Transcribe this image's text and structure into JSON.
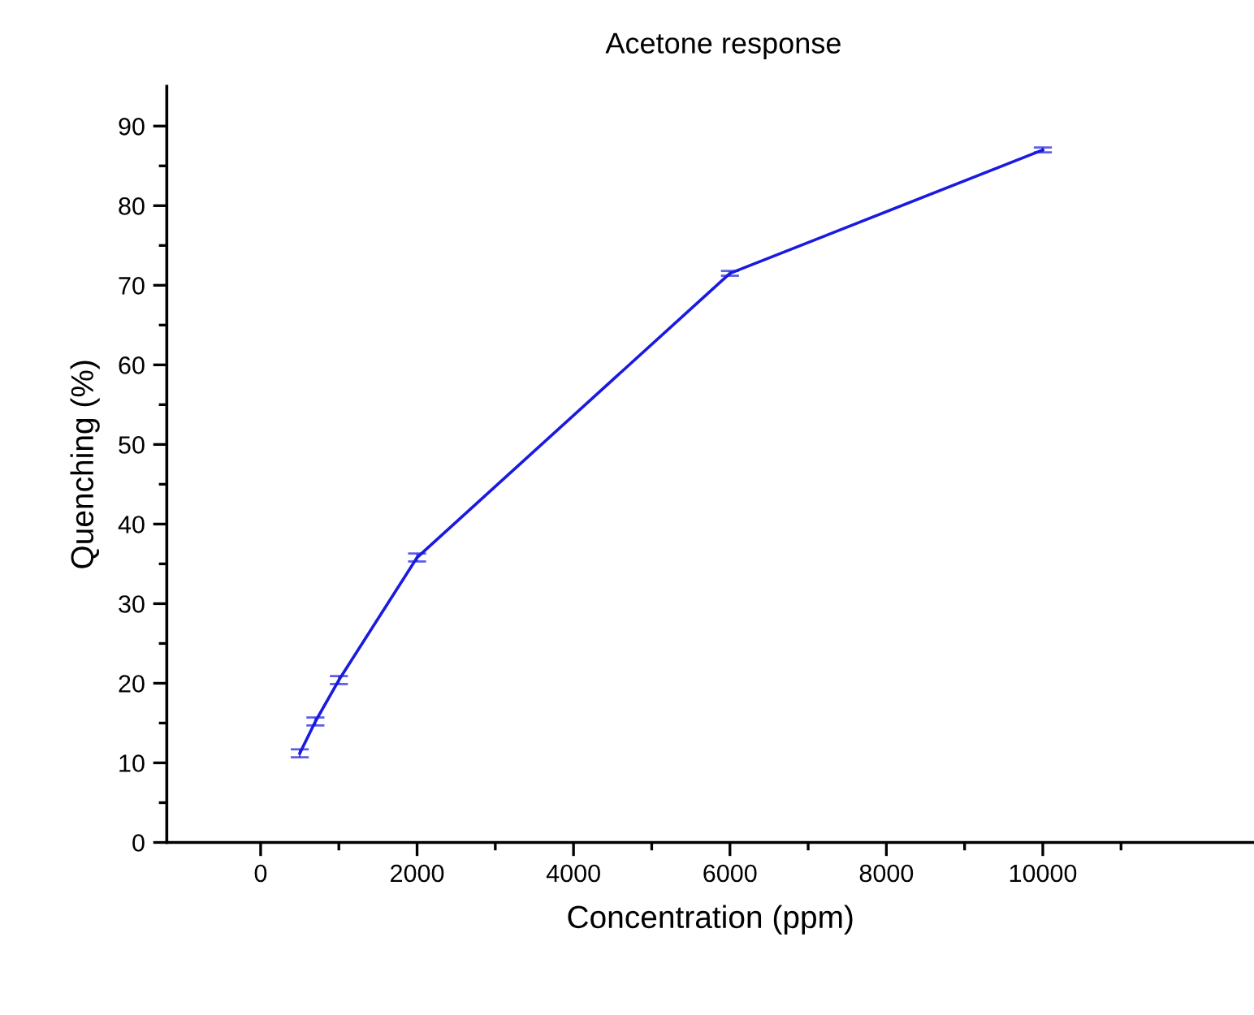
{
  "chart_data": {
    "type": "line",
    "title": "Acetone response",
    "xlabel": "Concentration (ppm)",
    "ylabel": "Quenching (%)",
    "x": [
      500,
      700,
      1000,
      2000,
      6000,
      10000
    ],
    "series": [
      {
        "color": "#1a1ae0",
        "values": [
          11.2,
          15.2,
          20.4,
          35.8,
          71.5,
          87.0
        ],
        "errors": [
          0.5,
          0.5,
          0.5,
          0.5,
          0.3,
          0.3
        ]
      }
    ],
    "xlim": [
      -1200,
      12700
    ],
    "ylim": [
      0,
      95
    ],
    "xticks": [
      0,
      {
        "value": 1000,
        "label": null
      },
      2000,
      {
        "value": 3000,
        "label": null
      },
      4000,
      {
        "value": 5000,
        "label": null
      },
      6000,
      {
        "value": 7000,
        "label": null
      },
      8000,
      {
        "value": 9000,
        "label": null
      },
      10000,
      {
        "value": 11000,
        "label": null
      }
    ],
    "yticks": [
      0,
      {
        "value": 5,
        "label": null
      },
      10,
      {
        "value": 15,
        "label": null
      },
      20,
      {
        "value": 25,
        "label": null
      },
      30,
      {
        "value": 35,
        "label": null
      },
      40,
      {
        "value": 45,
        "label": null
      },
      50,
      {
        "value": 55,
        "label": null
      },
      60,
      {
        "value": 65,
        "label": null
      },
      70,
      {
        "value": 75,
        "label": null
      },
      80,
      {
        "value": 85,
        "label": null
      },
      90
    ],
    "grid": false,
    "legend": false,
    "marker": "none",
    "line_style": "solid"
  }
}
